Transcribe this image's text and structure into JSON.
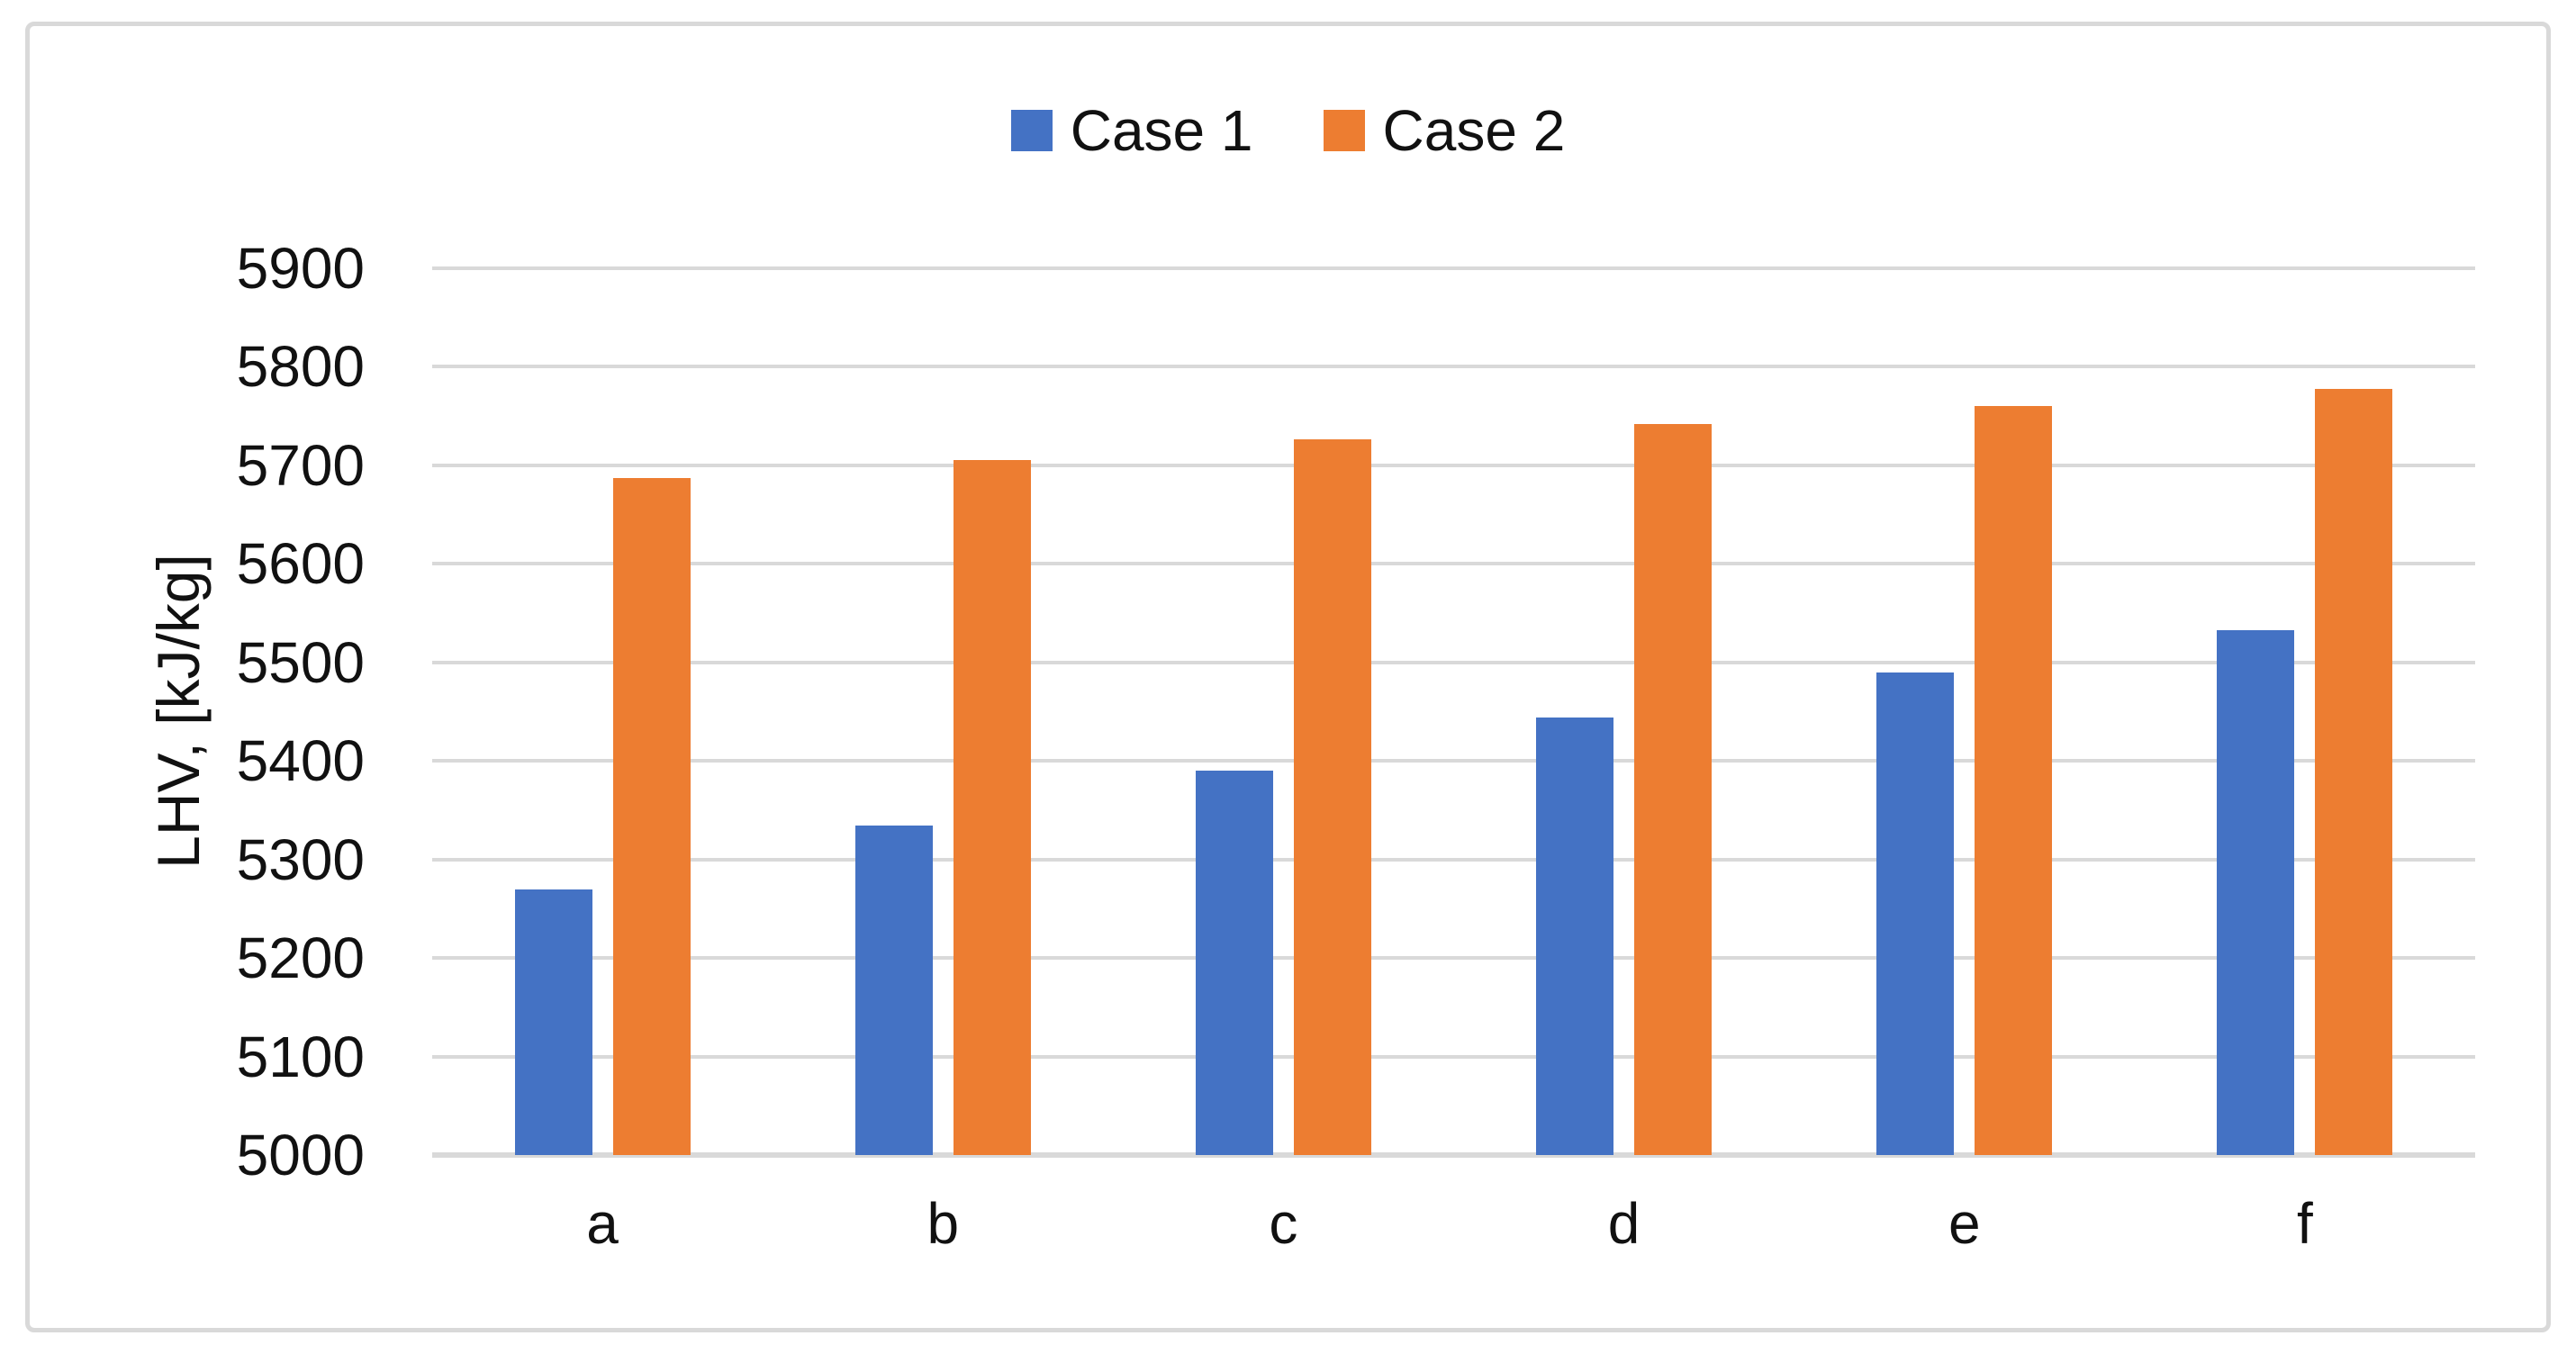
{
  "chart_data": {
    "type": "bar",
    "title": "",
    "categories": [
      "a",
      "b",
      "c",
      "d",
      "e",
      "f"
    ],
    "series": [
      {
        "name": "Case 1",
        "color": "#4472C4",
        "values": [
          5270,
          5334,
          5390,
          5444,
          5490,
          5533
        ]
      },
      {
        "name": "Case 2",
        "color": "#ED7D31",
        "values": [
          5687,
          5705,
          5726,
          5742,
          5760,
          5778
        ]
      }
    ],
    "xlabel": "",
    "ylabel": "LHV, [kJ/kg]",
    "ylim": [
      5000,
      5900
    ],
    "ytick_step": 100,
    "yticks": [
      5900,
      5800,
      5700,
      5600,
      5500,
      5400,
      5300,
      5200,
      5100,
      5000
    ],
    "grid": "horizontal",
    "legend_position": "top-center"
  },
  "styles": {
    "background": "#FFFFFF",
    "frame_border_color": "#D9D9D9",
    "gridline_color": "#D9D9D9",
    "axis_line_color": "#D9D9D9",
    "text_color": "#111111"
  }
}
